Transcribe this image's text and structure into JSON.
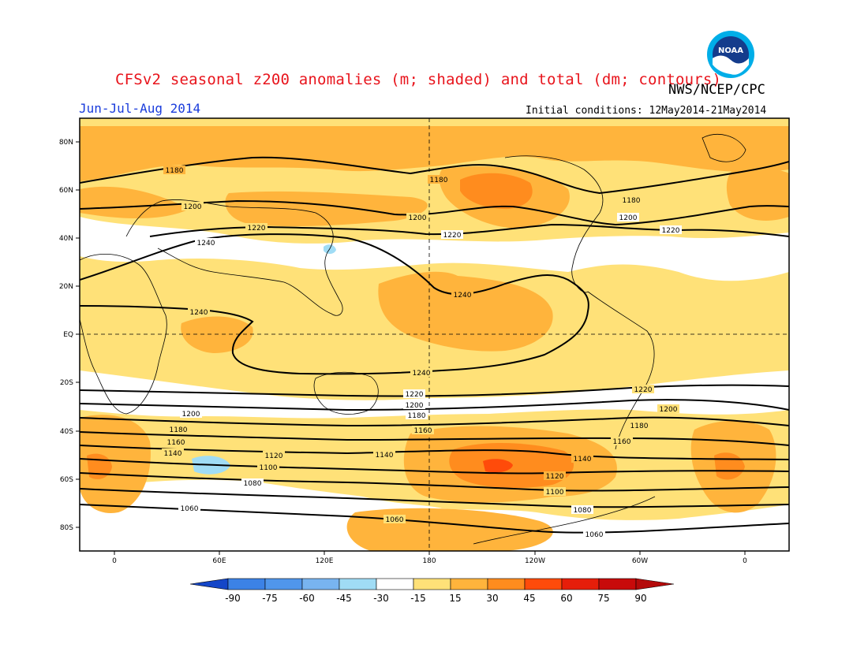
{
  "title": "CFSv2 seasonal z200 anomalies (m; shaded) and total (dm; contours)",
  "agency": "NWS/NCEP/CPC",
  "period": "Jun-Jul-Aug 2014",
  "initial_conditions": "Initial conditions: 12May2014-21May2014",
  "logo": {
    "text": "NOAA",
    "name": "noaa-logo"
  },
  "map": {
    "projection": "cylindrical equidistant",
    "lon_range": [
      -20,
      380
    ],
    "lat_range": [
      -90,
      90
    ],
    "lat_ticks": [
      "80N",
      "60N",
      "40N",
      "20N",
      "EQ",
      "20S",
      "40S",
      "60S",
      "80S"
    ],
    "lon_ticks": [
      "0",
      "60E",
      "120E",
      "180",
      "120W",
      "60W",
      "0"
    ],
    "reference_lines": [
      "EQ",
      "180"
    ],
    "contour_labels": [
      "1180",
      "1200",
      "1220",
      "1240",
      "1220",
      "1200",
      "1180",
      "1160",
      "1140",
      "1120",
      "1100",
      "1080",
      "1060"
    ]
  },
  "colorbar": {
    "labels": [
      "-90",
      "-75",
      "-60",
      "-45",
      "-30",
      "-15",
      "15",
      "30",
      "45",
      "60",
      "75",
      "90"
    ],
    "colors": [
      "#1e64dc",
      "#3c82e6",
      "#5096eb",
      "#78b4f0",
      "#a0dcf5",
      "#ffffff",
      "#ffe178",
      "#ffb43c",
      "#ff8c1e",
      "#ff4b0a",
      "#e61e0a",
      "#c80a0a"
    ],
    "end_low_color": "#1446c8",
    "end_high_color": "#b40a0a"
  },
  "colors": {
    "title": "#e8141c",
    "period": "#1a3cdc",
    "anomaly_15_30": "#ffe178",
    "anomaly_30_45": "#ffb43c",
    "anomaly_45_60": "#ff8c1e",
    "anomaly_60_75": "#ff4b0a",
    "anomaly_neg15_neg30": "#a0dcf5"
  }
}
